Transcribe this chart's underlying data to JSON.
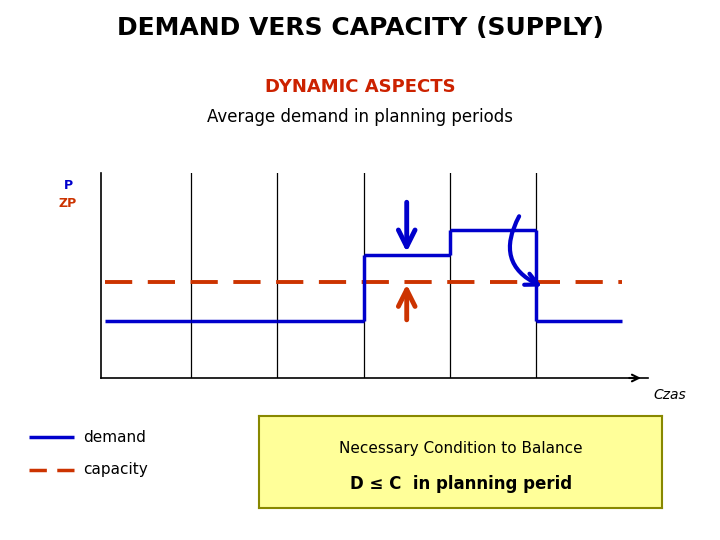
{
  "title": "DEMAND VERS CAPACITY (SUPPLY)",
  "subtitle": "DYNAMIC ASPECTS",
  "subtitle2": "Average demand in planning periods",
  "xlabel": "Czas",
  "demand_color": "#0000CC",
  "capacity_color": "#CC3300",
  "background_color": "#FFFFFF",
  "box_color": "#FFFF99",
  "box_edge_color": "#888800",
  "box_text1": "Necessary Condition to Balance",
  "box_text2": "D ≤ C  in planning perid",
  "legend_demand": "demand",
  "legend_capacity": "capacity",
  "periods": [
    0,
    1,
    2,
    3,
    4,
    5,
    6
  ],
  "demand_levels": [
    0.28,
    0.28,
    0.28,
    0.6,
    0.72,
    0.28,
    0.28
  ],
  "capacity_level": 0.47,
  "title_fontsize": 18,
  "subtitle_fontsize": 13,
  "subtitle2_fontsize": 12,
  "label_fontsize": 11
}
